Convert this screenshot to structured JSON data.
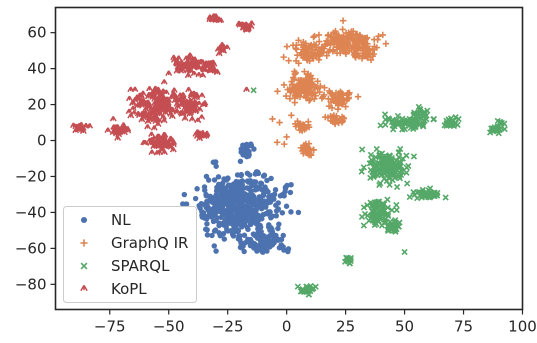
{
  "chart_data": {
    "type": "scatter",
    "title": "",
    "xlabel": "",
    "ylabel": "",
    "xlim": [
      -98,
      100
    ],
    "ylim": [
      -94,
      74
    ],
    "xticks": [
      -75,
      -50,
      -25,
      0,
      25,
      50,
      75,
      100
    ],
    "xtick_labels": [
      "−75",
      "−50",
      "−25",
      "0",
      "25",
      "50",
      "75",
      "100"
    ],
    "yticks": [
      -80,
      -60,
      -40,
      -20,
      0,
      20,
      40,
      60
    ],
    "ytick_labels": [
      "−80",
      "−60",
      "−40",
      "−20",
      "0",
      "20",
      "40",
      "60"
    ],
    "grid": false,
    "legend_position": "lower-left",
    "series": [
      {
        "name": "NL",
        "color": "#4c72b0",
        "marker": "circle",
        "clusters": [
          {
            "cx": -20,
            "cy": -36,
            "sx": 12,
            "sy": 12,
            "n": 520
          },
          {
            "cx": -10,
            "cy": -57,
            "sx": 7,
            "sy": 4,
            "n": 80
          },
          {
            "cx": -17,
            "cy": -5,
            "sx": 2,
            "sy": 3,
            "n": 25
          }
        ],
        "points": [
          [
            -0.5,
            -26
          ],
          [
            5,
            -40
          ],
          [
            -34,
            -20
          ],
          [
            -31,
            -45
          ],
          [
            -28,
            -27
          ]
        ]
      },
      {
        "name": "GraphQ IR",
        "color": "#dd8452",
        "marker": "plus",
        "clusters": [
          {
            "cx": 25,
            "cy": 55,
            "sx": 9,
            "sy": 5,
            "n": 160
          },
          {
            "cx": 32,
            "cy": 49,
            "sx": 4,
            "sy": 3,
            "n": 40
          },
          {
            "cx": 9,
            "cy": 49,
            "sx": 5,
            "sy": 4,
            "n": 70
          },
          {
            "cx": 7,
            "cy": 29,
            "sx": 5,
            "sy": 6,
            "n": 120
          },
          {
            "cx": 22,
            "cy": 24,
            "sx": 4,
            "sy": 4,
            "n": 50
          },
          {
            "cx": 21,
            "cy": 12,
            "sx": 3,
            "sy": 2,
            "n": 25
          },
          {
            "cx": 9,
            "cy": -5,
            "sx": 2,
            "sy": 2.5,
            "n": 30
          },
          {
            "cx": 6,
            "cy": 8,
            "sx": 2,
            "sy": 2,
            "n": 25
          }
        ],
        "points": [
          [
            -6,
            12
          ],
          [
            -4,
            -1
          ],
          [
            -1,
            -2
          ],
          [
            2,
            14
          ],
          [
            -3,
            10
          ],
          [
            0,
            2
          ]
        ]
      },
      {
        "name": "SPARQL",
        "color": "#55a868",
        "marker": "x",
        "clusters": [
          {
            "cx": 50,
            "cy": 10,
            "sx": 6,
            "sy": 3,
            "n": 70
          },
          {
            "cx": 57,
            "cy": 15,
            "sx": 3,
            "sy": 2,
            "n": 25
          },
          {
            "cx": 70,
            "cy": 10,
            "sx": 2.5,
            "sy": 2,
            "n": 25
          },
          {
            "cx": 90,
            "cy": 7,
            "sx": 2,
            "sy": 2,
            "n": 25
          },
          {
            "cx": 43,
            "cy": -15,
            "sx": 6,
            "sy": 6,
            "n": 150
          },
          {
            "cx": 38,
            "cy": -40,
            "sx": 4,
            "sy": 5,
            "n": 80
          },
          {
            "cx": 45,
            "cy": -48,
            "sx": 3,
            "sy": 3,
            "n": 30
          },
          {
            "cx": 60,
            "cy": -30,
            "sx": 4,
            "sy": 2,
            "n": 40
          },
          {
            "cx": 26,
            "cy": -67,
            "sx": 1.5,
            "sy": 1.5,
            "n": 15
          },
          {
            "cx": 9,
            "cy": -83,
            "sx": 2.5,
            "sy": 2,
            "n": 30
          }
        ],
        "points": [
          [
            -14,
            28
          ],
          [
            32,
            -5
          ],
          [
            50,
            -62
          ]
        ]
      },
      {
        "name": "KoPL",
        "color": "#c44e52",
        "marker": "triangle",
        "clusters": [
          {
            "cx": -30,
            "cy": 67,
            "sx": 2,
            "sy": 1.5,
            "n": 20
          },
          {
            "cx": -18,
            "cy": 63,
            "sx": 2,
            "sy": 2,
            "n": 20
          },
          {
            "cx": -27,
            "cy": 51,
            "sx": 2,
            "sy": 2,
            "n": 15
          },
          {
            "cx": -42,
            "cy": 42,
            "sx": 4,
            "sy": 3,
            "n": 55
          },
          {
            "cx": -33,
            "cy": 40,
            "sx": 3,
            "sy": 3,
            "n": 30
          },
          {
            "cx": -55,
            "cy": 19,
            "sx": 8,
            "sy": 7,
            "n": 190
          },
          {
            "cx": -40,
            "cy": 20,
            "sx": 4,
            "sy": 6,
            "n": 60
          },
          {
            "cx": -53,
            "cy": -2,
            "sx": 4,
            "sy": 3,
            "n": 60
          },
          {
            "cx": -71,
            "cy": 5,
            "sx": 2.5,
            "sy": 2,
            "n": 35
          },
          {
            "cx": -88,
            "cy": 7,
            "sx": 2,
            "sy": 1.5,
            "n": 20
          },
          {
            "cx": -36,
            "cy": 3,
            "sx": 2,
            "sy": 2,
            "n": 15
          }
        ],
        "points": [
          [
            -17,
            28
          ],
          [
            -50,
            37
          ]
        ]
      }
    ]
  }
}
